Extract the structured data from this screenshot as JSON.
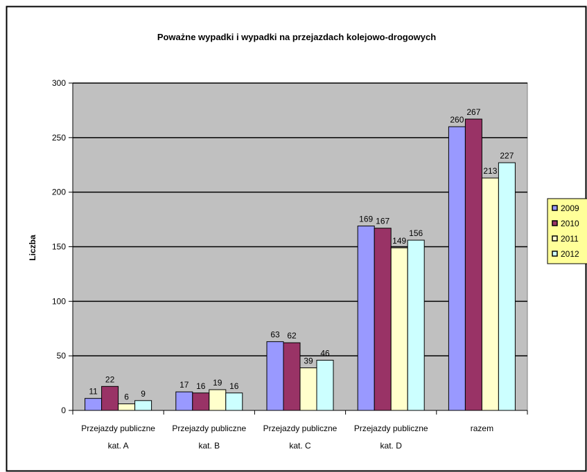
{
  "chart_data": {
    "type": "bar",
    "title": "Poważne wypadki i wypadki na przejazdach kolejowo-drogowych",
    "ylabel": "Liczba",
    "xlabel": "",
    "ylim": [
      0,
      300
    ],
    "yticks": [
      0,
      50,
      100,
      150,
      200,
      250,
      300
    ],
    "grid": true,
    "legend_position": "right",
    "categories": [
      [
        "Przejazdy publiczne",
        "kat. A"
      ],
      [
        "Przejazdy publiczne",
        "kat. B"
      ],
      [
        "Przejazdy publiczne",
        "kat. C"
      ],
      [
        "Przejazdy publiczne",
        "kat. D"
      ],
      [
        "razem"
      ]
    ],
    "series": [
      {
        "name": "2009",
        "color": "#9999ff",
        "values": [
          11,
          17,
          63,
          169,
          260
        ]
      },
      {
        "name": "2010",
        "color": "#993366",
        "values": [
          22,
          16,
          62,
          167,
          267
        ]
      },
      {
        "name": "2011",
        "color": "#ffffcc",
        "values": [
          6,
          19,
          39,
          149,
          213
        ]
      },
      {
        "name": "2012",
        "color": "#ccffff",
        "values": [
          9,
          16,
          46,
          156,
          227
        ]
      }
    ],
    "plot_background": "#c0c0c0",
    "legend_background": "#ffff99"
  }
}
